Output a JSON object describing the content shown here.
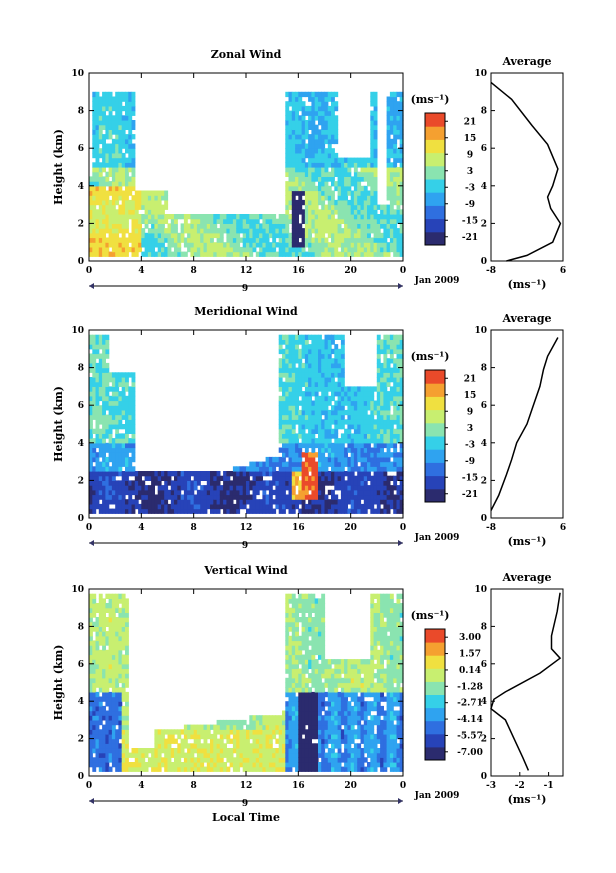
{
  "chart_data": [
    {
      "type": "heatmap",
      "title": "Zonal Wind",
      "ylabel": "Height (km)",
      "xlabel": "",
      "xlim": [
        0,
        24
      ],
      "ylim": [
        0,
        10
      ],
      "x_ticks": [
        "0",
        "4",
        "8",
        "12",
        "16",
        "20",
        "0"
      ],
      "y_ticks": [
        "0",
        "2",
        "4",
        "6",
        "8",
        "10"
      ],
      "date_axis": {
        "day_label": "9",
        "month_label": "Jan 2009"
      },
      "colorbar": {
        "unit_label": "(ms⁻¹)",
        "min": -21,
        "max": 21,
        "ticks": [
          "21",
          "15",
          "9",
          "3",
          "-3",
          "-9",
          "-15",
          "-21"
        ]
      },
      "average": {
        "title": "Average",
        "xlabel": "(ms⁻¹)",
        "x_ticks": [
          "-8",
          "6"
        ],
        "xlim": [
          -8,
          6
        ],
        "ylim": [
          0,
          10
        ],
        "profile": [
          [
            -8,
            9.5
          ],
          [
            -4,
            8.6
          ],
          [
            0,
            7.2
          ],
          [
            3,
            6.2
          ],
          [
            5,
            4.9
          ],
          [
            4,
            4
          ],
          [
            3,
            3.4
          ],
          [
            3.6,
            2.8
          ],
          [
            5.5,
            2
          ],
          [
            4,
            1
          ],
          [
            -1,
            0.3
          ],
          [
            -5,
            0
          ]
        ]
      }
    },
    {
      "type": "heatmap",
      "title": "Meridional Wind",
      "ylabel": "Height (km)",
      "xlabel": "",
      "xlim": [
        0,
        24
      ],
      "ylim": [
        0,
        10
      ],
      "x_ticks": [
        "0",
        "4",
        "8",
        "12",
        "16",
        "20",
        "0"
      ],
      "y_ticks": [
        "0",
        "2",
        "4",
        "6",
        "8",
        "10"
      ],
      "date_axis": {
        "day_label": "9",
        "month_label": "Jan 2009"
      },
      "colorbar": {
        "unit_label": "(ms⁻¹)",
        "min": -21,
        "max": 21,
        "ticks": [
          "21",
          "15",
          "9",
          "3",
          "-3",
          "-9",
          "-15",
          "-21"
        ]
      },
      "average": {
        "title": "Average",
        "xlabel": "(ms⁻¹)",
        "x_ticks": [
          "-8",
          "6"
        ],
        "xlim": [
          -8,
          6
        ],
        "ylim": [
          0,
          10
        ],
        "profile": [
          [
            5,
            9.6
          ],
          [
            3,
            8.6
          ],
          [
            2.2,
            7.9
          ],
          [
            1.5,
            7
          ],
          [
            0,
            5.8
          ],
          [
            -1,
            5
          ],
          [
            -3,
            4
          ],
          [
            -4,
            3.1
          ],
          [
            -5,
            2.3
          ],
          [
            -6.5,
            1.2
          ],
          [
            -8,
            0.4
          ]
        ]
      }
    },
    {
      "type": "heatmap",
      "title": "Vertical Wind",
      "ylabel": "Height (km)",
      "xlabel": "Local Time",
      "xlim": [
        0,
        24
      ],
      "ylim": [
        0,
        10
      ],
      "x_ticks": [
        "0",
        "4",
        "8",
        "12",
        "16",
        "20",
        "0"
      ],
      "y_ticks": [
        "0",
        "2",
        "4",
        "6",
        "8",
        "10"
      ],
      "date_axis": {
        "day_label": "9",
        "month_label": "Jan 2009"
      },
      "colorbar": {
        "unit_label": "(ms⁻¹)",
        "min": -7.0,
        "max": 3.0,
        "ticks": [
          "3.00",
          "1.57",
          "0.14",
          "-1.28",
          "-2.71",
          "-4.14",
          "-5.57",
          "-7.00"
        ]
      },
      "average": {
        "title": "Average",
        "xlabel": "(ms⁻¹)",
        "x_ticks": [
          "-3",
          "-2",
          "-1"
        ],
        "xlim": [
          -3,
          -0.5
        ],
        "ylim": [
          0,
          10
        ],
        "profile": [
          [
            -0.6,
            9.8
          ],
          [
            -0.7,
            8.8
          ],
          [
            -0.9,
            7.5
          ],
          [
            -0.9,
            6.8
          ],
          [
            -0.6,
            6.3
          ],
          [
            -1.3,
            5.5
          ],
          [
            -2.5,
            4.5
          ],
          [
            -2.9,
            4.1
          ],
          [
            -3,
            3.6
          ],
          [
            -2.5,
            3
          ],
          [
            -2.2,
            2
          ],
          [
            -1.9,
            1
          ],
          [
            -1.7,
            0.3
          ]
        ]
      }
    }
  ]
}
